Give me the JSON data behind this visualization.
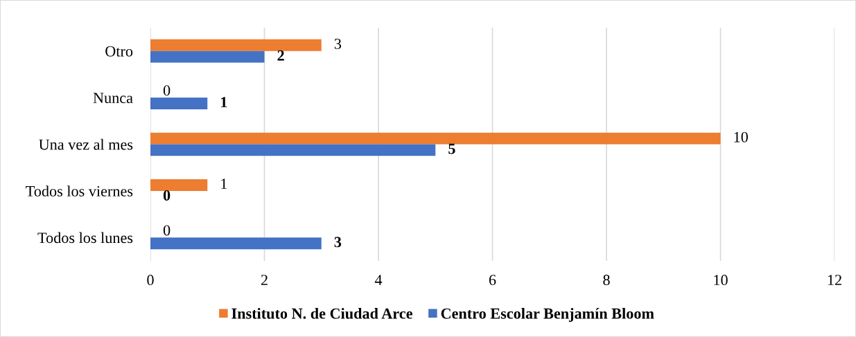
{
  "chart_data": {
    "type": "bar",
    "orientation": "horizontal",
    "categories": [
      "Otro",
      "Nunca",
      "Una vez al mes",
      "Todos los viernes",
      "Todos los lunes"
    ],
    "series": [
      {
        "name": "Instituto N. de Ciudad Arce",
        "color": "#ed7d31",
        "values": [
          3,
          0,
          10,
          1,
          0
        ]
      },
      {
        "name": "Centro Escolar Benjamín Bloom",
        "color": "#4472c4",
        "values": [
          2,
          1,
          5,
          0,
          3
        ]
      }
    ],
    "xlim": [
      0,
      12
    ],
    "xticks": [
      0,
      2,
      4,
      6,
      8,
      10,
      12
    ],
    "grid": "x",
    "legend": "bottom",
    "data_labels": true
  }
}
